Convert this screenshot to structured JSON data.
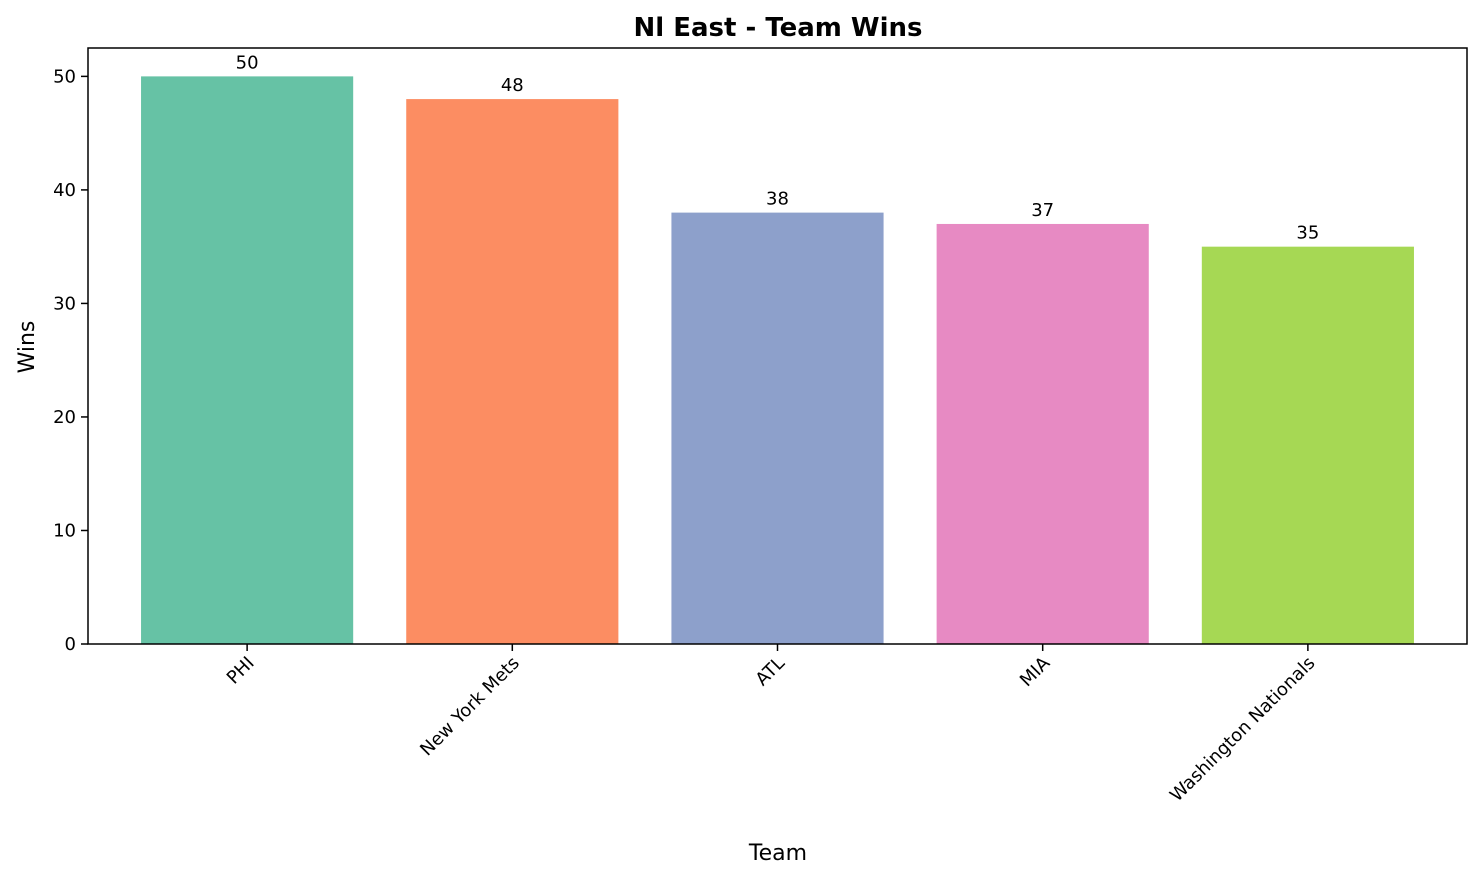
{
  "chart_data": {
    "type": "bar",
    "title": "Nl East - Team Wins",
    "xlabel": "Team",
    "ylabel": "Wins",
    "categories": [
      "PHI",
      "New York Mets",
      "ATL",
      "MIA",
      "Washington Nationals"
    ],
    "values": [
      50,
      48,
      38,
      37,
      35
    ],
    "colors": [
      "#66c2a5",
      "#fc8d62",
      "#8da0cb",
      "#e78ac3",
      "#a6d854"
    ],
    "ylim": [
      0,
      52.5
    ],
    "yticks": [
      0,
      10,
      20,
      30,
      40,
      50
    ],
    "grid": false,
    "legend": "none",
    "tick_rotation": 45,
    "data_labels": [
      "50",
      "48",
      "38",
      "37",
      "35"
    ]
  }
}
